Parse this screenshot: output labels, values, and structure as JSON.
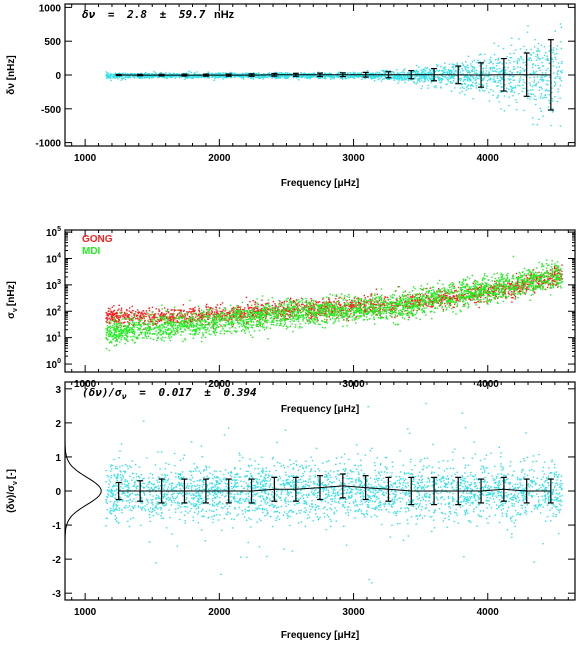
{
  "colors": {
    "scatter_primary": "#33e1e8",
    "gong": "#ff1f1f",
    "mdi": "#22ee22",
    "axis": "#000000"
  },
  "chart_data": [
    {
      "type": "scatter",
      "xlabel": "Frequency [μHz]",
      "ylabel": "δν [nHz]",
      "xlim": [
        850,
        4650
      ],
      "ylim": [
        -1050,
        1050
      ],
      "xticks": [
        1000,
        2000,
        3000,
        4000
      ],
      "yticks": [
        -1000,
        -500,
        0,
        500,
        1000
      ],
      "grid": false,
      "annotation": {
        "symbol": "δν",
        "equals": "=",
        "mean": "2.8",
        "pm": "±",
        "std": "59.7",
        "unit": "nHz"
      },
      "series": [
        {
          "name": "",
          "scatter": {
            "x_range": [
              1150,
              4550
            ],
            "base_spread_nHz": 20,
            "spread_growth": "rises steeply above 3000 μHz to ~±600 nHz at 4500 μHz"
          },
          "binned_x": [
            1250,
            1410,
            1570,
            1740,
            1900,
            2070,
            2240,
            2410,
            2570,
            2750,
            2920,
            3090,
            3260,
            3430,
            3600,
            3780,
            3950,
            4120,
            4290,
            4470
          ],
          "binned_mean": [
            0,
            -1,
            -1,
            -2,
            -2,
            -2,
            -1,
            3,
            3,
            3,
            4,
            4,
            4,
            5,
            5,
            2,
            0,
            3,
            5,
            2
          ],
          "binned_err": [
            8,
            10,
            12,
            14,
            15,
            16,
            18,
            20,
            22,
            25,
            28,
            35,
            45,
            60,
            90,
            130,
            180,
            240,
            320,
            520
          ]
        }
      ]
    },
    {
      "type": "scatter",
      "xlabel": "Frequency [μHz]",
      "ylabel": "σ_ν [nHz]",
      "ylabel_main": "σ",
      "ylabel_sub": "ν",
      "ylabel_unit": "[nHz]",
      "xlim": [
        850,
        4650
      ],
      "ylim": [
        0.5,
        120000
      ],
      "yscale": "log",
      "xticks": [
        1000,
        2000,
        3000,
        4000
      ],
      "yticks": [
        1,
        10,
        100,
        1000,
        10000,
        100000
      ],
      "ytick_labels": [
        {
          "base": "10",
          "exp": "0"
        },
        {
          "base": "10",
          "exp": "1"
        },
        {
          "base": "10",
          "exp": "2"
        },
        {
          "base": "10",
          "exp": "3"
        },
        {
          "base": "10",
          "exp": "4"
        },
        {
          "base": "10",
          "exp": "5"
        }
      ],
      "legend": {
        "placement": "top-left"
      },
      "grid": false,
      "series": [
        {
          "name": "GONG",
          "trend_x": [
            1150,
            1500,
            2000,
            2500,
            3000,
            3300,
            3800,
            4200,
            4550
          ],
          "trend_y": [
            70,
            60,
            80,
            110,
            150,
            180,
            400,
            900,
            2500
          ]
        },
        {
          "name": "MDI",
          "trend_x": [
            1150,
            1500,
            2000,
            2500,
            3000,
            3300,
            3800,
            4200,
            4550
          ],
          "trend_y": [
            15,
            25,
            45,
            80,
            120,
            160,
            500,
            1100,
            2800
          ]
        }
      ]
    },
    {
      "type": "scatter",
      "xlabel": "Frequency [μHz]",
      "ylabel": "(δν)/σ_ν [-]",
      "ylabel_main": "(δν)/σ",
      "ylabel_sub": "ν",
      "ylabel_unit": "[-]",
      "xlim": [
        850,
        4650
      ],
      "ylim": [
        -3.2,
        3.2
      ],
      "xticks": [
        1000,
        2000,
        3000,
        4000
      ],
      "yticks": [
        -3,
        -2,
        -1,
        0,
        1,
        2,
        3
      ],
      "grid": false,
      "annotation": {
        "symbol": "(δν)/σ",
        "subscript": "ν",
        "equals": "=",
        "mean": "0.017",
        "pm": "±",
        "std": "0.394"
      },
      "inset": {
        "type": "gaussian-profile",
        "mean": 0.0,
        "sigma": 0.4,
        "x_from": 850,
        "peak_x": 1120
      },
      "series": [
        {
          "name": "",
          "scatter": {
            "x_range": [
              1150,
              4550
            ],
            "spread_sigma": 0.4
          },
          "binned_x": [
            1250,
            1410,
            1570,
            1740,
            1900,
            2070,
            2240,
            2410,
            2570,
            2750,
            2920,
            3090,
            3260,
            3430,
            3600,
            3780,
            3950,
            4120,
            4290,
            4470
          ],
          "binned_mean": [
            0.0,
            0.0,
            0.0,
            0.0,
            0.0,
            0.0,
            0.0,
            0.05,
            0.05,
            0.1,
            0.15,
            0.1,
            0.05,
            0.0,
            0.0,
            0.0,
            0.0,
            0.05,
            0.0,
            0.0
          ],
          "binned_err": [
            0.25,
            0.3,
            0.35,
            0.35,
            0.35,
            0.35,
            0.35,
            0.35,
            0.35,
            0.35,
            0.35,
            0.35,
            0.35,
            0.4,
            0.4,
            0.4,
            0.35,
            0.35,
            0.35,
            0.35
          ]
        }
      ]
    }
  ]
}
